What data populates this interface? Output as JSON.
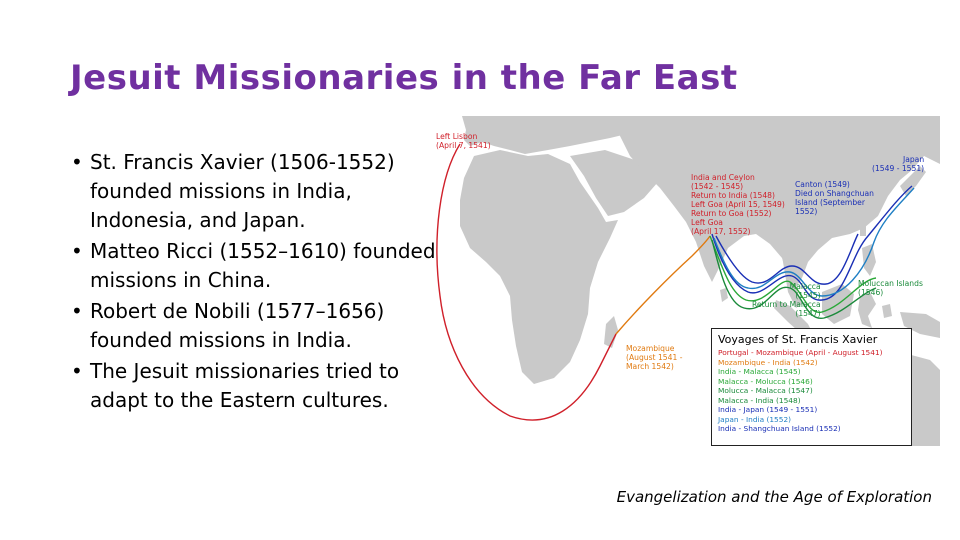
{
  "colors": {
    "title": "#7030a0",
    "land": "#c9c9c9",
    "route_lisbon_mozambique": "#d0202a",
    "route_mozambique_india": "#e07a10",
    "route_india_malacca": "#2aa838",
    "route_malacca_japan": "#1a2fb5",
    "route_india_malacca_1548": "#1a8a3a",
    "route_japan_india": "#1f7fc4"
  },
  "slide": {
    "title": "Jesuit Missionaries in the Far East",
    "bullets": [
      "St. Francis Xavier (1506-1552) founded missions in India, Indonesia, and Japan.",
      "Matteo Ricci (1552–1610) founded missions in China.",
      "Robert de Nobili (1577–1656) founded missions in India.",
      "The Jesuit missionaries tried to adapt to the Eastern cultures."
    ],
    "caption": "Evangelization and the Age of Exploration"
  },
  "map": {
    "labels": {
      "lisbon": "Left Lisbon\n(April 7, 1541)",
      "mozambique": "Mozambique\n(August 1541 -\nMarch 1542)",
      "india": "India and Ceylon\n(1542 - 1545)\nReturn to India (1548)\nLeft Goa (April 15, 1549)\nReturn to Goa (1552)\nLeft Goa\n(April 17, 1552)",
      "japan": "Japan\n(1549 - 1551)",
      "canton": "Canton (1549)\nDied on Shangchuan\nIsland (September\n1552)",
      "moluccan": "Moluccan Islands\n(1546)",
      "malacca": "Malacca\n(1545)\nReturn to Malacca\n(1547)"
    },
    "legend": {
      "title": "Voyages of St. Francis Xavier",
      "items": [
        {
          "text": "Portugal - Mozambique (April - August 1541)",
          "color": "#d0202a"
        },
        {
          "text": "Mozambique - India (1542)",
          "color": "#e07a10"
        },
        {
          "text": "India - Malacca (1545)",
          "color": "#2aa838"
        },
        {
          "text": "Malacca - Molucca (1546)",
          "color": "#2aa838"
        },
        {
          "text": "Molucca - Malacca (1547)",
          "color": "#1a8a3a"
        },
        {
          "text": "Malacca - India (1548)",
          "color": "#1a8a3a"
        },
        {
          "text": "India - Japan (1549 - 1551)",
          "color": "#1a2fb5"
        },
        {
          "text": "Japan - India (1552)",
          "color": "#1f7fc4"
        },
        {
          "text": "India - Shangchuan Island (1552)",
          "color": "#1a2fb5"
        }
      ]
    }
  }
}
